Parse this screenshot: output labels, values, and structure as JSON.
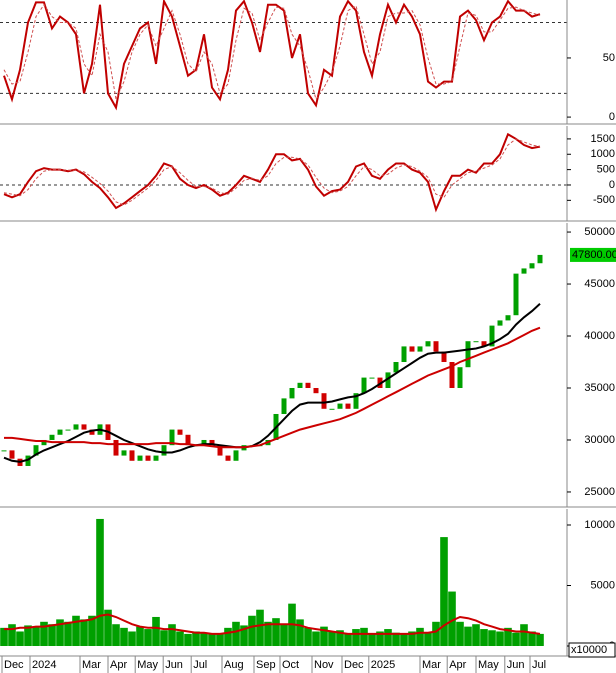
{
  "chart_data": [
    {
      "type": "line",
      "xlim": [
        -0.5,
        70.375
      ],
      "ylim": [
        -5,
        99
      ],
      "yticks": [
        0,
        50
      ],
      "levels": [
        20,
        80
      ],
      "series": [
        {
          "color": "#c00000",
          "dash": false,
          "values": [
            35,
            15,
            40,
            80,
            97,
            97,
            75,
            85,
            80,
            70,
            20,
            45,
            95,
            20,
            8,
            45,
            60,
            75,
            80,
            45,
            98,
            85,
            60,
            35,
            40,
            70,
            25,
            15,
            40,
            90,
            98,
            80,
            55,
            95,
            95,
            90,
            50,
            70,
            20,
            10,
            40,
            35,
            85,
            98,
            90,
            55,
            35,
            70,
            95,
            80,
            95,
            85,
            70,
            30,
            25,
            30,
            30,
            85,
            90,
            82,
            65,
            80,
            85,
            98,
            90,
            90,
            85,
            87
          ]
        },
        {
          "color": "#d05050",
          "dash": true,
          "values": [
            40,
            28,
            30,
            55,
            85,
            95,
            85,
            80,
            80,
            75,
            45,
            35,
            70,
            55,
            15,
            30,
            55,
            70,
            78,
            60,
            75,
            90,
            70,
            45,
            38,
            55,
            45,
            20,
            28,
            65,
            92,
            88,
            65,
            80,
            93,
            92,
            70,
            60,
            40,
            15,
            25,
            38,
            60,
            90,
            94,
            70,
            45,
            55,
            85,
            88,
            88,
            90,
            78,
            50,
            28,
            28,
            30,
            60,
            88,
            86,
            72,
            72,
            82,
            92,
            93,
            90,
            88,
            86
          ]
        }
      ]
    },
    {
      "type": "line",
      "xlim": [
        -0.5,
        70.375
      ],
      "ylim": [
        -1140,
        1920
      ],
      "yticks": [
        -500,
        0,
        500,
        1000,
        1500
      ],
      "levels": [
        0
      ],
      "series": [
        {
          "color": "#c00000",
          "dash": false,
          "values": [
            -300,
            -400,
            -300,
            100,
            450,
            550,
            500,
            500,
            450,
            500,
            350,
            100,
            -100,
            -400,
            -750,
            -600,
            -400,
            -200,
            0,
            300,
            700,
            600,
            200,
            0,
            -100,
            0,
            -150,
            -350,
            -250,
            0,
            300,
            200,
            100,
            500,
            1000,
            1000,
            800,
            850,
            500,
            -50,
            -350,
            -200,
            -150,
            100,
            600,
            700,
            300,
            200,
            500,
            700,
            700,
            500,
            400,
            100,
            -800,
            -200,
            300,
            300,
            500,
            400,
            700,
            700,
            1000,
            1650,
            1500,
            1300,
            1200,
            1250
          ]
        },
        {
          "color": "#d05050",
          "dash": true,
          "values": [
            -250,
            -300,
            -350,
            -150,
            200,
            450,
            500,
            500,
            480,
            480,
            430,
            250,
            50,
            -200,
            -550,
            -650,
            -500,
            -300,
            -100,
            150,
            500,
            600,
            400,
            150,
            -50,
            -50,
            -100,
            -250,
            -300,
            -100,
            150,
            220,
            150,
            300,
            700,
            900,
            900,
            850,
            650,
            250,
            -100,
            -250,
            -200,
            -50,
            300,
            600,
            500,
            300,
            350,
            550,
            650,
            600,
            450,
            250,
            -300,
            -400,
            0,
            200,
            400,
            450,
            550,
            650,
            850,
            1300,
            1500,
            1400,
            1300,
            1250
          ]
        }
      ]
    },
    {
      "type": "candlestick",
      "xlim": [
        -0.5,
        70.375
      ],
      "ylim": [
        23650,
        50870
      ],
      "yticks": [
        25000,
        30000,
        35000,
        40000,
        45000,
        50000
      ],
      "last_price": {
        "value": 47800,
        "label": "47800.00"
      },
      "series": [
        {
          "up_color": "#00a000",
          "down_color": "#d00000",
          "values": [
            29000,
            28200,
            27500,
            28500,
            29500,
            30000,
            30500,
            31000,
            31000,
            31500,
            31000,
            30500,
            31500,
            30000,
            28500,
            29000,
            28000,
            28500,
            28000,
            28500,
            29500,
            31000,
            30500,
            29500,
            29500,
            30000,
            29500,
            28500,
            28000,
            29000,
            29500,
            29500,
            29500,
            30000,
            32500,
            34000,
            35000,
            35500,
            35000,
            34500,
            33000,
            33000,
            33500,
            33000,
            34500,
            36000,
            36000,
            35000,
            36500,
            37500,
            39000,
            38500,
            39000,
            39500,
            38500,
            37500,
            35000,
            37000,
            39500,
            39500,
            39000,
            41000,
            41500,
            42000,
            46000,
            46500,
            47000,
            47800
          ]
        },
        {
          "color": "#000000",
          "dash": false,
          "values": [
            28300,
            28000,
            27900,
            28100,
            28600,
            29000,
            29300,
            29600,
            29900,
            30300,
            30700,
            30900,
            31000,
            30800,
            30400,
            30000,
            29700,
            29400,
            29100,
            28900,
            28800,
            28800,
            29000,
            29300,
            29500,
            29600,
            29600,
            29500,
            29400,
            29300,
            29300,
            29400,
            29800,
            30400,
            31200,
            32000,
            32800,
            33400,
            33600,
            33600,
            33600,
            33700,
            33900,
            34100,
            34200,
            34500,
            34900,
            35400,
            35900,
            36400,
            36900,
            37400,
            37900,
            38300,
            38400,
            38400,
            38500,
            38600,
            38700,
            38800,
            39000,
            39300,
            39700,
            40200,
            41100,
            41800,
            42400,
            43100
          ]
        },
        {
          "color": "#cc0000",
          "dash": false,
          "values": [
            30200,
            30200,
            30100,
            30000,
            29900,
            29900,
            29800,
            29800,
            29800,
            29800,
            29800,
            29700,
            29700,
            29600,
            29600,
            29600,
            29600,
            29600,
            29600,
            29700,
            29700,
            29700,
            29600,
            29600,
            29500,
            29500,
            29400,
            29300,
            29300,
            29300,
            29300,
            29400,
            29500,
            29800,
            30100,
            30400,
            30700,
            31000,
            31200,
            31400,
            31600,
            31800,
            32000,
            32300,
            32600,
            33000,
            33400,
            33800,
            34200,
            34600,
            35000,
            35400,
            35800,
            36200,
            36500,
            36800,
            37100,
            37500,
            37800,
            38100,
            38400,
            38700,
            39000,
            39300,
            39700,
            40100,
            40500,
            40800
          ]
        }
      ]
    },
    {
      "type": "bar",
      "xlim": [
        -0.5,
        70.375
      ],
      "ylim": [
        -744,
        11322
      ],
      "yticks": [
        0,
        5000,
        10000
      ],
      "unit_label": "x10000",
      "xticks": [
        {
          "value": -0.25,
          "label": "Dec"
        },
        {
          "value": 3.25,
          "label": "2024"
        },
        {
          "value": 9.5,
          "label": "Mar"
        },
        {
          "value": 13,
          "label": "Apr"
        },
        {
          "value": 16.4,
          "label": "May"
        },
        {
          "value": 19.9,
          "label": "Jun"
        },
        {
          "value": 23.4,
          "label": "Jul"
        },
        {
          "value": 27.25,
          "label": "Aug"
        },
        {
          "value": 31.25,
          "label": "Sep"
        },
        {
          "value": 34.5,
          "label": "Oct"
        },
        {
          "value": 38.5,
          "label": "Nov"
        },
        {
          "value": 42.25,
          "label": "Dec"
        },
        {
          "value": 45.6,
          "label": "2025"
        },
        {
          "value": 52,
          "label": "Mar"
        },
        {
          "value": 55.4,
          "label": "Apr"
        },
        {
          "value": 59,
          "label": "May"
        },
        {
          "value": 62.6,
          "label": "Jun"
        },
        {
          "value": 65.75,
          "label": "Jul"
        }
      ],
      "series": [
        {
          "color": "#00a000",
          "values": [
            1500,
            1800,
            1200,
            1700,
            1600,
            2000,
            1800,
            2200,
            2000,
            2500,
            2200,
            2500,
            10500,
            3000,
            1800,
            1500,
            1200,
            1600,
            1400,
            2400,
            1300,
            1800,
            1200,
            1000,
            1200,
            1100,
            1000,
            1000,
            1500,
            2000,
            1700,
            2500,
            3000,
            2000,
            2300,
            1800,
            3500,
            2200,
            1500,
            1200,
            1600,
            1200,
            1300,
            1000,
            1400,
            1500,
            1000,
            1200,
            1400,
            1100,
            1000,
            1200,
            1500,
            1100,
            2000,
            9000,
            4500,
            2000,
            1600,
            1800,
            1400,
            1300,
            1200,
            1500,
            1100,
            1800,
            1200,
            1000
          ]
        },
        {
          "color": "#cc0000",
          "dash": false,
          "values": [
            1400,
            1400,
            1500,
            1500,
            1600,
            1600,
            1700,
            1800,
            1900,
            2000,
            2100,
            2200,
            2500,
            2600,
            2400,
            2100,
            1800,
            1600,
            1500,
            1500,
            1400,
            1400,
            1300,
            1200,
            1100,
            1100,
            1000,
            1000,
            1100,
            1200,
            1400,
            1600,
            1700,
            1800,
            1800,
            1800,
            1800,
            1700,
            1500,
            1400,
            1300,
            1200,
            1100,
            1000,
            1000,
            1000,
            1000,
            1000,
            1000,
            1000,
            1000,
            1000,
            1100,
            1100,
            1200,
            1700,
            2100,
            2400,
            2300,
            2100,
            1800,
            1600,
            1400,
            1300,
            1200,
            1200,
            1100,
            1000
          ]
        }
      ]
    }
  ]
}
